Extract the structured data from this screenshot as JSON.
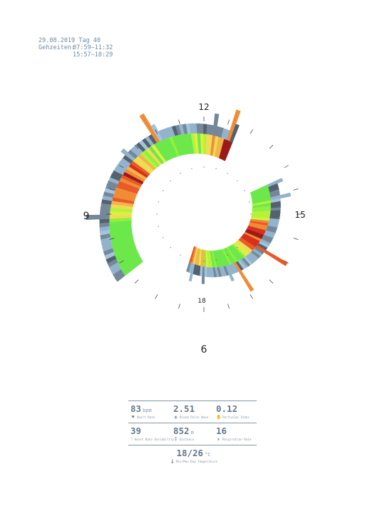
{
  "header": {
    "date_line": "29.08.2019 Tag 40",
    "times_label": "Gehzeiten:",
    "times": [
      "07:59–11:32",
      "15:57–18:29"
    ]
  },
  "clock": {
    "labels": {
      "top": "12",
      "right": "15",
      "left": "9",
      "bottom_outer": "6",
      "bottom_inner": "18"
    },
    "colors": {
      "heart_scale": [
        "#9b1b1b",
        "#d8301c",
        "#e85a27",
        "#f08c38",
        "#f4b44a",
        "#efdc55",
        "#dcef45",
        "#b4f23c",
        "#8ef040",
        "#6ce84a"
      ],
      "outer_scale": [
        "#0e1216",
        "#2e3942",
        "#53626e",
        "#74889a",
        "#93b3cc",
        "#a3c4dc"
      ]
    }
  },
  "stats": {
    "heart_rate": {
      "value": "83",
      "unit": "bpm",
      "label": "Heart Rate",
      "icon": "heart-icon"
    },
    "blood_pulse_wave": {
      "value": "2.51",
      "unit": "",
      "label": "Blood Pulse Wave",
      "icon": "pulse-icon"
    },
    "perfusion_index": {
      "value": "0.12",
      "unit": "",
      "label": "Perfusion Index",
      "icon": "hand-icon"
    },
    "hrv": {
      "value": "39",
      "unit": "",
      "label": "Heart Rate Variability",
      "icon": "heart-wave-icon"
    },
    "distance": {
      "value": "852",
      "unit": "m",
      "label": "Distance",
      "icon": "footsteps-icon"
    },
    "respiration": {
      "value": "16",
      "unit": "",
      "label": "Respiration Rate",
      "icon": "lungs-icon"
    },
    "temperature": {
      "value": "18/26",
      "unit": "°C",
      "label": "Min/Max Day Temperature",
      "icon": "thermometer-icon"
    }
  }
}
